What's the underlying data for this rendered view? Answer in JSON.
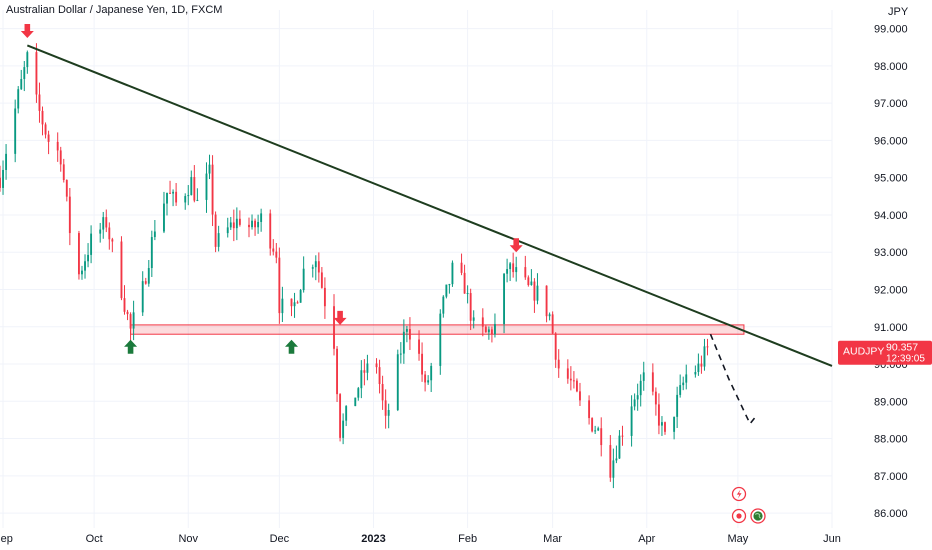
{
  "window": {
    "title": "Australian Dollar / Japanese Yen, 1D, FXCM"
  },
  "chart_data": {
    "type": "candlestick",
    "symbol": "AUDJPY",
    "timeframe": "1D",
    "source": "FXCM",
    "currency_label": "JPY",
    "y_ticks": [
      "99.000",
      "98.000",
      "97.000",
      "96.000",
      "95.000",
      "94.000",
      "93.000",
      "92.000",
      "91.000",
      "90.000",
      "89.000",
      "88.000",
      "87.000",
      "86.000"
    ],
    "y_tick_values": [
      99,
      98,
      97,
      96,
      95,
      94,
      93,
      92,
      91,
      90,
      89,
      88,
      87,
      86
    ],
    "ylim": [
      85.6,
      99.5
    ],
    "x_ticks": [
      {
        "label": "Sep",
        "date": "2022-09-01",
        "bold": false
      },
      {
        "label": "Oct",
        "date": "2022-10-01",
        "bold": false
      },
      {
        "label": "Nov",
        "date": "2022-11-01",
        "bold": false
      },
      {
        "label": "Dec",
        "date": "2022-12-01",
        "bold": false
      },
      {
        "label": "2023",
        "date": "2023-01-01",
        "bold": true
      },
      {
        "label": "Feb",
        "date": "2023-02-01",
        "bold": false
      },
      {
        "label": "Mar",
        "date": "2023-03-01",
        "bold": false
      },
      {
        "label": "Apr",
        "date": "2023-04-01",
        "bold": false
      },
      {
        "label": "May",
        "date": "2023-05-01",
        "bold": false
      },
      {
        "label": "Jun",
        "date": "2023-06-01",
        "bold": false
      }
    ],
    "xlim": [
      "2022-08-31",
      "2023-06-01"
    ],
    "path_points": [
      [
        "2022-08-31",
        95.0
      ],
      [
        "2022-09-06",
        97.2
      ],
      [
        "2022-09-09",
        98.2
      ],
      [
        "2022-09-12",
        97.0
      ],
      [
        "2022-09-16",
        96.0
      ],
      [
        "2022-09-20",
        95.6
      ],
      [
        "2022-09-23",
        93.6
      ],
      [
        "2022-09-26",
        92.4
      ],
      [
        "2022-09-30",
        93.3
      ],
      [
        "2022-10-05",
        93.8
      ],
      [
        "2022-10-10",
        92.0
      ],
      [
        "2022-10-13",
        90.9
      ],
      [
        "2022-10-17",
        92.0
      ],
      [
        "2022-10-21",
        93.7
      ],
      [
        "2022-10-25",
        94.6
      ],
      [
        "2022-10-28",
        94.3
      ],
      [
        "2022-11-02",
        94.9
      ],
      [
        "2022-11-04",
        94.3
      ],
      [
        "2022-11-08",
        95.1
      ],
      [
        "2022-11-10",
        93.2
      ],
      [
        "2022-11-14",
        93.6
      ],
      [
        "2022-11-18",
        93.9
      ],
      [
        "2022-11-22",
        93.6
      ],
      [
        "2022-11-25",
        93.9
      ],
      [
        "2022-11-30",
        93.0
      ],
      [
        "2022-12-01",
        91.6
      ],
      [
        "2022-12-05",
        91.3
      ],
      [
        "2022-12-09",
        92.5
      ],
      [
        "2022-12-13",
        92.9
      ],
      [
        "2022-12-16",
        91.7
      ],
      [
        "2022-12-19",
        90.6
      ],
      [
        "2022-12-21",
        88.2
      ],
      [
        "2022-12-26",
        89.2
      ],
      [
        "2022-12-29",
        89.8
      ],
      [
        "2023-01-02",
        90.0
      ],
      [
        "2023-01-05",
        88.4
      ],
      [
        "2023-01-09",
        90.0
      ],
      [
        "2023-01-12",
        91.1
      ],
      [
        "2023-01-16",
        90.2
      ],
      [
        "2023-01-18",
        89.3
      ],
      [
        "2023-01-20",
        89.9
      ],
      [
        "2023-01-24",
        91.6
      ],
      [
        "2023-01-27",
        92.5
      ],
      [
        "2023-01-31",
        92.1
      ],
      [
        "2023-02-03",
        91.0
      ],
      [
        "2023-02-07",
        90.8
      ],
      [
        "2023-02-10",
        91.0
      ],
      [
        "2023-02-14",
        92.6
      ],
      [
        "2023-02-17",
        92.4
      ],
      [
        "2023-02-21",
        92.0
      ],
      [
        "2023-02-24",
        91.9
      ],
      [
        "2023-02-28",
        91.3
      ],
      [
        "2023-03-03",
        89.9
      ],
      [
        "2023-03-07",
        89.5
      ],
      [
        "2023-03-10",
        88.9
      ],
      [
        "2023-03-14",
        88.4
      ],
      [
        "2023-03-17",
        88.1
      ],
      [
        "2023-03-20",
        87.2
      ],
      [
        "2023-03-23",
        88.0
      ],
      [
        "2023-03-27",
        89.0
      ],
      [
        "2023-03-31",
        89.6
      ],
      [
        "2023-04-04",
        88.8
      ],
      [
        "2023-04-07",
        88.0
      ],
      [
        "2023-04-11",
        89.0
      ],
      [
        "2023-04-14",
        89.7
      ],
      [
        "2023-04-18",
        89.9
      ],
      [
        "2023-04-21",
        90.4
      ]
    ],
    "trendline": {
      "from": [
        "2022-09-09",
        98.55
      ],
      "to": [
        "2023-06-01",
        89.95
      ],
      "color": "#1e3d1f"
    },
    "support_zone": {
      "low": 90.8,
      "high": 91.05,
      "from": "2022-10-13",
      "to": "2023-05-03",
      "color": "#f23645"
    },
    "projection": [
      [
        "2023-04-22",
        90.8
      ],
      [
        "2023-04-28",
        89.6
      ],
      [
        "2023-05-05",
        88.4
      ],
      [
        "2023-05-07",
        88.6
      ]
    ],
    "arrows_down": [
      {
        "date": "2022-09-09",
        "value": 98.75
      },
      {
        "date": "2022-12-21",
        "value": 91.05
      },
      {
        "date": "2023-02-17",
        "value": 93.0
      }
    ],
    "arrows_up": [
      {
        "date": "2022-10-13",
        "value": 90.65
      },
      {
        "date": "2022-12-05",
        "value": 90.65
      }
    ],
    "price_label": {
      "symbol": "AUDJPY",
      "price": "90.357",
      "countdown": "12:39:05",
      "value": 90.357,
      "color": "#f23645"
    },
    "colors": {
      "up": "#089981",
      "down": "#f23645",
      "text": "#131722",
      "arrow_up": "#1b7a3c",
      "arrow_down": "#f23645"
    }
  },
  "event_icons": [
    {
      "name": "lightning-icon",
      "color": "#f23645"
    },
    {
      "name": "record-icon",
      "color": "#f23645"
    },
    {
      "name": "globe-icon",
      "color": "#2e7d32"
    }
  ]
}
